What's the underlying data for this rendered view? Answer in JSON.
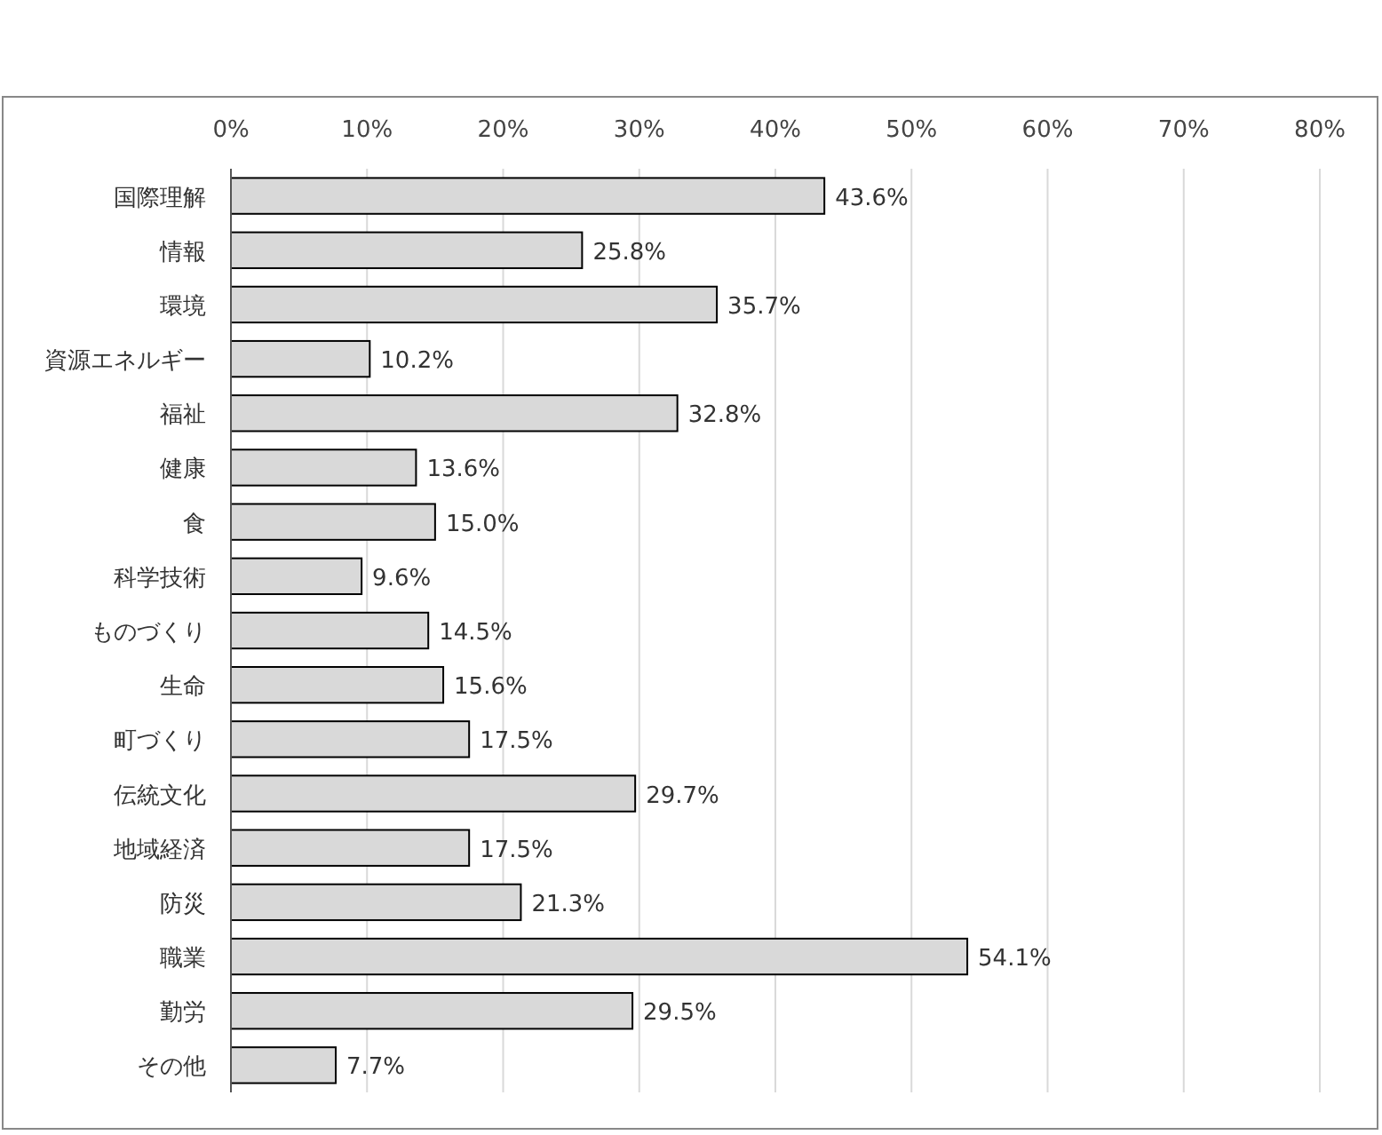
{
  "chart_data": {
    "type": "bar",
    "orientation": "horizontal",
    "categories": [
      "国際理解",
      "情報",
      "環境",
      "資源エネルギー",
      "福祉",
      "健康",
      "食",
      "科学技術",
      "ものづくり",
      "生命",
      "町づくり",
      "伝統文化",
      "地域経済",
      "防災",
      "職業",
      "勤労",
      "その他"
    ],
    "values": [
      43.6,
      25.8,
      35.7,
      10.2,
      32.8,
      13.6,
      15.0,
      9.6,
      14.5,
      15.6,
      17.5,
      29.7,
      17.5,
      21.3,
      54.1,
      29.5,
      7.7
    ],
    "value_labels": [
      "43.6%",
      "25.8%",
      "35.7%",
      "10.2%",
      "32.8%",
      "13.6%",
      "15.0%",
      "9.6%",
      "14.5%",
      "15.6%",
      "17.5%",
      "29.7%",
      "17.5%",
      "21.3%",
      "54.1%",
      "29.5%",
      "7.7%"
    ],
    "color": "#d9d9d9",
    "xlim": [
      0,
      80
    ],
    "xticks": [
      {
        "value": 0,
        "label": "0%"
      },
      {
        "value": 10,
        "label": "10%"
      },
      {
        "value": 20,
        "label": "20%"
      },
      {
        "value": 30,
        "label": "30%"
      },
      {
        "value": 40,
        "label": "40%"
      },
      {
        "value": 50,
        "label": "50%"
      },
      {
        "value": 60,
        "label": "60%"
      },
      {
        "value": 70,
        "label": "70%"
      },
      {
        "value": 80,
        "label": "80%"
      }
    ],
    "grid": "x"
  }
}
